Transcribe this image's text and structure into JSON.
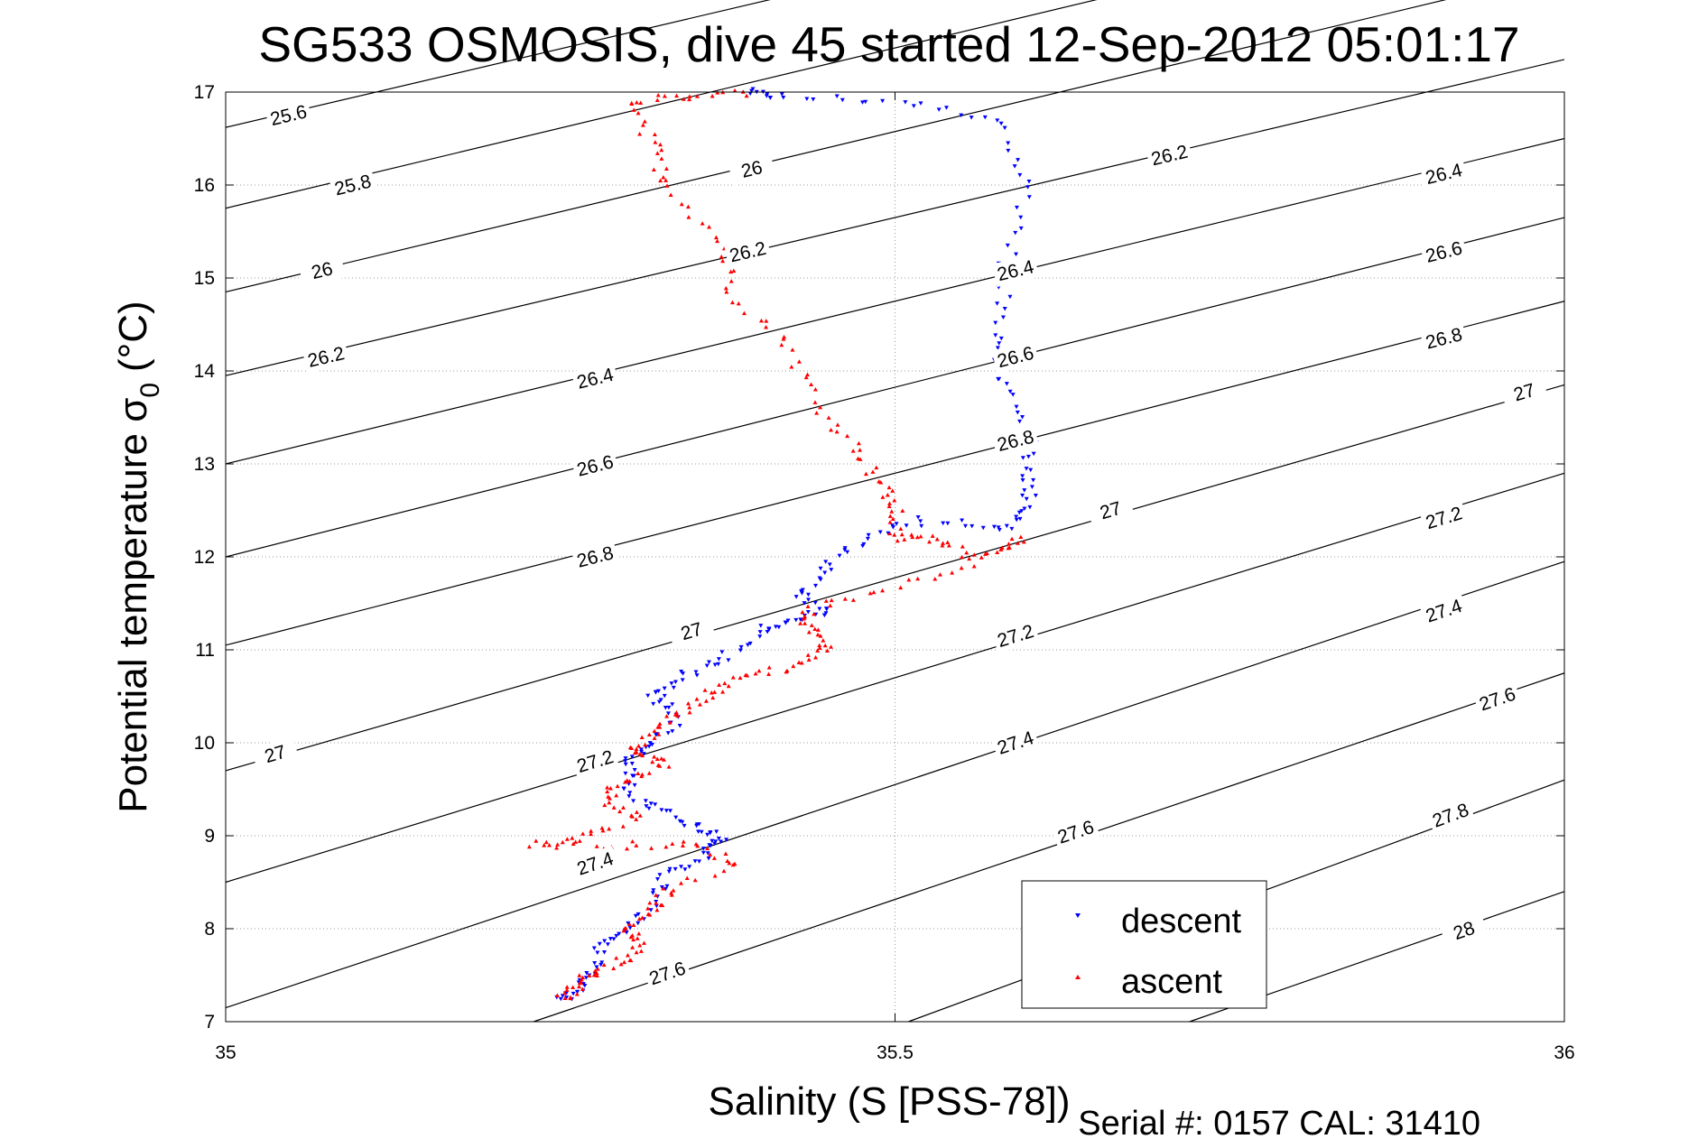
{
  "chart_data": {
    "type": "scatter",
    "title": "SG533 OSMOSIS, dive 45 started 12-Sep-2012 05:01:17",
    "xlabel": "Salinity (S [PSS-78])",
    "ylabel": "Potential temperature σ₀ (°C)",
    "ylabel_main": "Potential temperature σ",
    "ylabel_sub": "0",
    "ylabel_unit": "(°C)",
    "xlim": [
      35,
      36
    ],
    "ylim": [
      7,
      17
    ],
    "xticks": [
      35,
      35.5,
      36
    ],
    "xtick_labels": [
      "35",
      "35.5",
      "36"
    ],
    "yticks": [
      7,
      8,
      9,
      10,
      11,
      12,
      13,
      14,
      15,
      16,
      17
    ],
    "ytick_labels": [
      "7",
      "8",
      "9",
      "10",
      "11",
      "12",
      "13",
      "14",
      "15",
      "16",
      "17"
    ],
    "grid": true,
    "legend_position": "bottom-right",
    "footer": "Serial #: 0157  CAL: 31410",
    "colors": {
      "descent": "#0000ff",
      "ascent": "#ff0000",
      "contour": "#000000",
      "grid": "#999999"
    },
    "contours": [
      {
        "label": "25.6",
        "points": [
          [
            35.0,
            16.62
          ],
          [
            36.0,
            20.0
          ]
        ],
        "label_at": [
          35.047,
          16.75
        ]
      },
      {
        "label": "25.8",
        "points": [
          [
            35.0,
            15.75
          ],
          [
            36.0,
            19.2
          ]
        ],
        "label_at": [
          35.095,
          16.0
        ]
      },
      {
        "label": "26",
        "points": [
          [
            35.0,
            14.85
          ],
          [
            36.0,
            18.3
          ]
        ],
        "label_at": [
          35.072,
          15.08
        ]
      },
      {
        "label": "26",
        "points": [
          [
            35.0,
            14.85
          ],
          [
            36.0,
            18.3
          ]
        ],
        "label_at": [
          35.393,
          16.17
        ]
      },
      {
        "label": "26.2",
        "points": [
          [
            35.0,
            13.95
          ],
          [
            36.0,
            17.35
          ]
        ],
        "label_at": [
          35.075,
          14.15
        ]
      },
      {
        "label": "26.2",
        "points": [
          [
            35.0,
            13.95
          ],
          [
            36.0,
            17.35
          ]
        ],
        "label_at": [
          35.39,
          15.28
        ]
      },
      {
        "label": "26.2",
        "points": [
          [
            35.0,
            13.95
          ],
          [
            36.0,
            17.35
          ]
        ],
        "label_at": [
          35.705,
          16.32
        ]
      },
      {
        "label": "26.4",
        "points": [
          [
            35.0,
            13.0
          ],
          [
            36.0,
            16.5
          ]
        ],
        "label_at": [
          35.276,
          13.92
        ]
      },
      {
        "label": "26.4",
        "points": [
          [
            35.0,
            13.0
          ],
          [
            36.0,
            16.5
          ]
        ],
        "label_at": [
          35.59,
          15.08
        ]
      },
      {
        "label": "26.4",
        "points": [
          [
            35.0,
            13.0
          ],
          [
            36.0,
            16.5
          ]
        ],
        "label_at": [
          35.91,
          16.12
        ]
      },
      {
        "label": "26.6",
        "points": [
          [
            35.0,
            12.0
          ],
          [
            36.0,
            15.65
          ]
        ],
        "label_at": [
          35.276,
          12.98
        ]
      },
      {
        "label": "26.6",
        "points": [
          [
            35.0,
            12.0
          ],
          [
            36.0,
            15.65
          ]
        ],
        "label_at": [
          35.59,
          14.15
        ]
      },
      {
        "label": "26.6",
        "points": [
          [
            35.0,
            12.0
          ],
          [
            36.0,
            15.65
          ]
        ],
        "label_at": [
          35.91,
          15.28
        ]
      },
      {
        "label": "26.8",
        "points": [
          [
            35.0,
            11.05
          ],
          [
            36.0,
            14.75
          ]
        ],
        "label_at": [
          35.276,
          12.0
        ]
      },
      {
        "label": "26.8",
        "points": [
          [
            35.0,
            11.05
          ],
          [
            36.0,
            14.75
          ]
        ],
        "label_at": [
          35.59,
          13.25
        ]
      },
      {
        "label": "26.8",
        "points": [
          [
            35.0,
            11.05
          ],
          [
            36.0,
            14.75
          ]
        ],
        "label_at": [
          35.91,
          14.35
        ]
      },
      {
        "label": "27",
        "points": [
          [
            35.0,
            9.7
          ],
          [
            36.0,
            13.85
          ]
        ],
        "label_at": [
          35.037,
          9.88
        ]
      },
      {
        "label": "27",
        "points": [
          [
            35.0,
            9.7
          ],
          [
            36.0,
            13.85
          ]
        ],
        "label_at": [
          35.348,
          11.2
        ]
      },
      {
        "label": "27",
        "points": [
          [
            35.0,
            9.7
          ],
          [
            36.0,
            13.85
          ]
        ],
        "label_at": [
          35.661,
          12.5
        ]
      },
      {
        "label": "27",
        "points": [
          [
            35.0,
            9.7
          ],
          [
            36.0,
            13.85
          ]
        ],
        "label_at": [
          35.97,
          13.77
        ]
      },
      {
        "label": "27.2",
        "points": [
          [
            35.0,
            8.5
          ],
          [
            36.0,
            12.9
          ]
        ],
        "label_at": [
          35.276,
          9.8
        ]
      },
      {
        "label": "27.2",
        "points": [
          [
            35.0,
            8.5
          ],
          [
            36.0,
            12.9
          ]
        ],
        "label_at": [
          35.59,
          11.15
        ]
      },
      {
        "label": "27.2",
        "points": [
          [
            35.0,
            8.5
          ],
          [
            36.0,
            12.9
          ]
        ],
        "label_at": [
          35.91,
          12.42
        ]
      },
      {
        "label": "27.4",
        "points": [
          [
            35.0,
            7.15
          ],
          [
            36.0,
            11.95
          ]
        ],
        "label_at": [
          35.276,
          8.7
        ]
      },
      {
        "label": "27.4",
        "points": [
          [
            35.0,
            7.15
          ],
          [
            36.0,
            11.95
          ]
        ],
        "label_at": [
          35.59,
          10.0
        ]
      },
      {
        "label": "27.4",
        "points": [
          [
            35.0,
            7.15
          ],
          [
            36.0,
            11.95
          ]
        ],
        "label_at": [
          35.91,
          11.42
        ]
      },
      {
        "label": "27.6",
        "points": [
          [
            35.23,
            7.0
          ],
          [
            36.0,
            10.75
          ]
        ],
        "label_at": [
          35.33,
          7.52
        ]
      },
      {
        "label": "27.6",
        "points": [
          [
            35.23,
            7.0
          ],
          [
            36.0,
            10.75
          ]
        ],
        "label_at": [
          35.635,
          9.04
        ]
      },
      {
        "label": "27.6",
        "points": [
          [
            35.23,
            7.0
          ],
          [
            36.0,
            10.75
          ]
        ],
        "label_at": [
          35.95,
          10.47
        ]
      },
      {
        "label": "27.8",
        "points": [
          [
            35.51,
            7.0
          ],
          [
            36.0,
            9.6
          ]
        ],
        "label_at": [
          35.915,
          9.22
        ]
      },
      {
        "label": "28",
        "points": [
          [
            35.72,
            7.0
          ],
          [
            36.0,
            8.4
          ]
        ],
        "label_at": [
          35.925,
          7.98
        ]
      }
    ],
    "series": [
      {
        "name": "descent",
        "marker": "down-triangle",
        "path": [
          [
            35.39,
            17.0
          ],
          [
            35.41,
            16.95
          ],
          [
            35.5,
            16.9
          ],
          [
            35.58,
            16.7
          ],
          [
            35.6,
            15.9
          ],
          [
            35.58,
            15.0
          ],
          [
            35.58,
            14.3
          ],
          [
            35.58,
            13.9
          ],
          [
            35.6,
            13.3
          ],
          [
            35.6,
            12.9
          ],
          [
            35.6,
            12.5
          ],
          [
            35.58,
            12.3
          ],
          [
            35.52,
            12.4
          ],
          [
            35.48,
            12.2
          ],
          [
            35.45,
            11.9
          ],
          [
            35.43,
            11.6
          ],
          [
            35.45,
            11.4
          ],
          [
            35.42,
            11.3
          ],
          [
            35.4,
            11.2
          ],
          [
            35.37,
            10.9
          ],
          [
            35.34,
            10.7
          ],
          [
            35.32,
            10.5
          ],
          [
            35.34,
            10.3
          ],
          [
            35.32,
            10.0
          ],
          [
            35.3,
            9.8
          ],
          [
            35.3,
            9.5
          ],
          [
            35.32,
            9.3
          ],
          [
            35.35,
            9.1
          ],
          [
            35.37,
            9.0
          ],
          [
            35.36,
            8.8
          ],
          [
            35.33,
            8.6
          ],
          [
            35.32,
            8.3
          ],
          [
            35.3,
            8.0
          ],
          [
            35.28,
            7.8
          ],
          [
            35.27,
            7.5
          ],
          [
            35.26,
            7.3
          ],
          [
            35.25,
            7.25
          ]
        ],
        "count": 320
      },
      {
        "name": "ascent",
        "marker": "up-triangle",
        "path": [
          [
            35.39,
            17.0
          ],
          [
            35.34,
            16.95
          ],
          [
            35.3,
            16.9
          ],
          [
            35.32,
            16.4
          ],
          [
            35.33,
            16.0
          ],
          [
            35.37,
            15.4
          ],
          [
            35.38,
            14.8
          ],
          [
            35.42,
            14.3
          ],
          [
            35.44,
            13.7
          ],
          [
            35.47,
            13.2
          ],
          [
            35.49,
            12.8
          ],
          [
            35.5,
            12.5
          ],
          [
            35.5,
            12.2
          ],
          [
            35.53,
            12.2
          ],
          [
            35.56,
            12.0
          ],
          [
            35.6,
            12.2
          ],
          [
            35.55,
            11.9
          ],
          [
            35.48,
            11.6
          ],
          [
            35.43,
            11.4
          ],
          [
            35.44,
            11.2
          ],
          [
            35.45,
            11.0
          ],
          [
            35.42,
            10.8
          ],
          [
            35.38,
            10.7
          ],
          [
            35.36,
            10.5
          ],
          [
            35.34,
            10.3
          ],
          [
            35.32,
            10.1
          ],
          [
            35.3,
            9.9
          ],
          [
            35.33,
            9.8
          ],
          [
            35.3,
            9.6
          ],
          [
            35.28,
            9.4
          ],
          [
            35.31,
            9.2
          ],
          [
            35.27,
            9.0
          ],
          [
            35.23,
            8.9
          ],
          [
            35.29,
            8.9
          ],
          [
            35.35,
            8.9
          ],
          [
            35.38,
            8.7
          ],
          [
            35.33,
            8.4
          ],
          [
            35.32,
            8.2
          ],
          [
            35.3,
            8.0
          ],
          [
            35.31,
            7.8
          ],
          [
            35.29,
            7.6
          ],
          [
            35.27,
            7.5
          ],
          [
            35.26,
            7.35
          ],
          [
            35.25,
            7.25
          ]
        ],
        "count": 360
      }
    ]
  },
  "legend": {
    "descent_label": "descent",
    "ascent_label": "ascent"
  }
}
